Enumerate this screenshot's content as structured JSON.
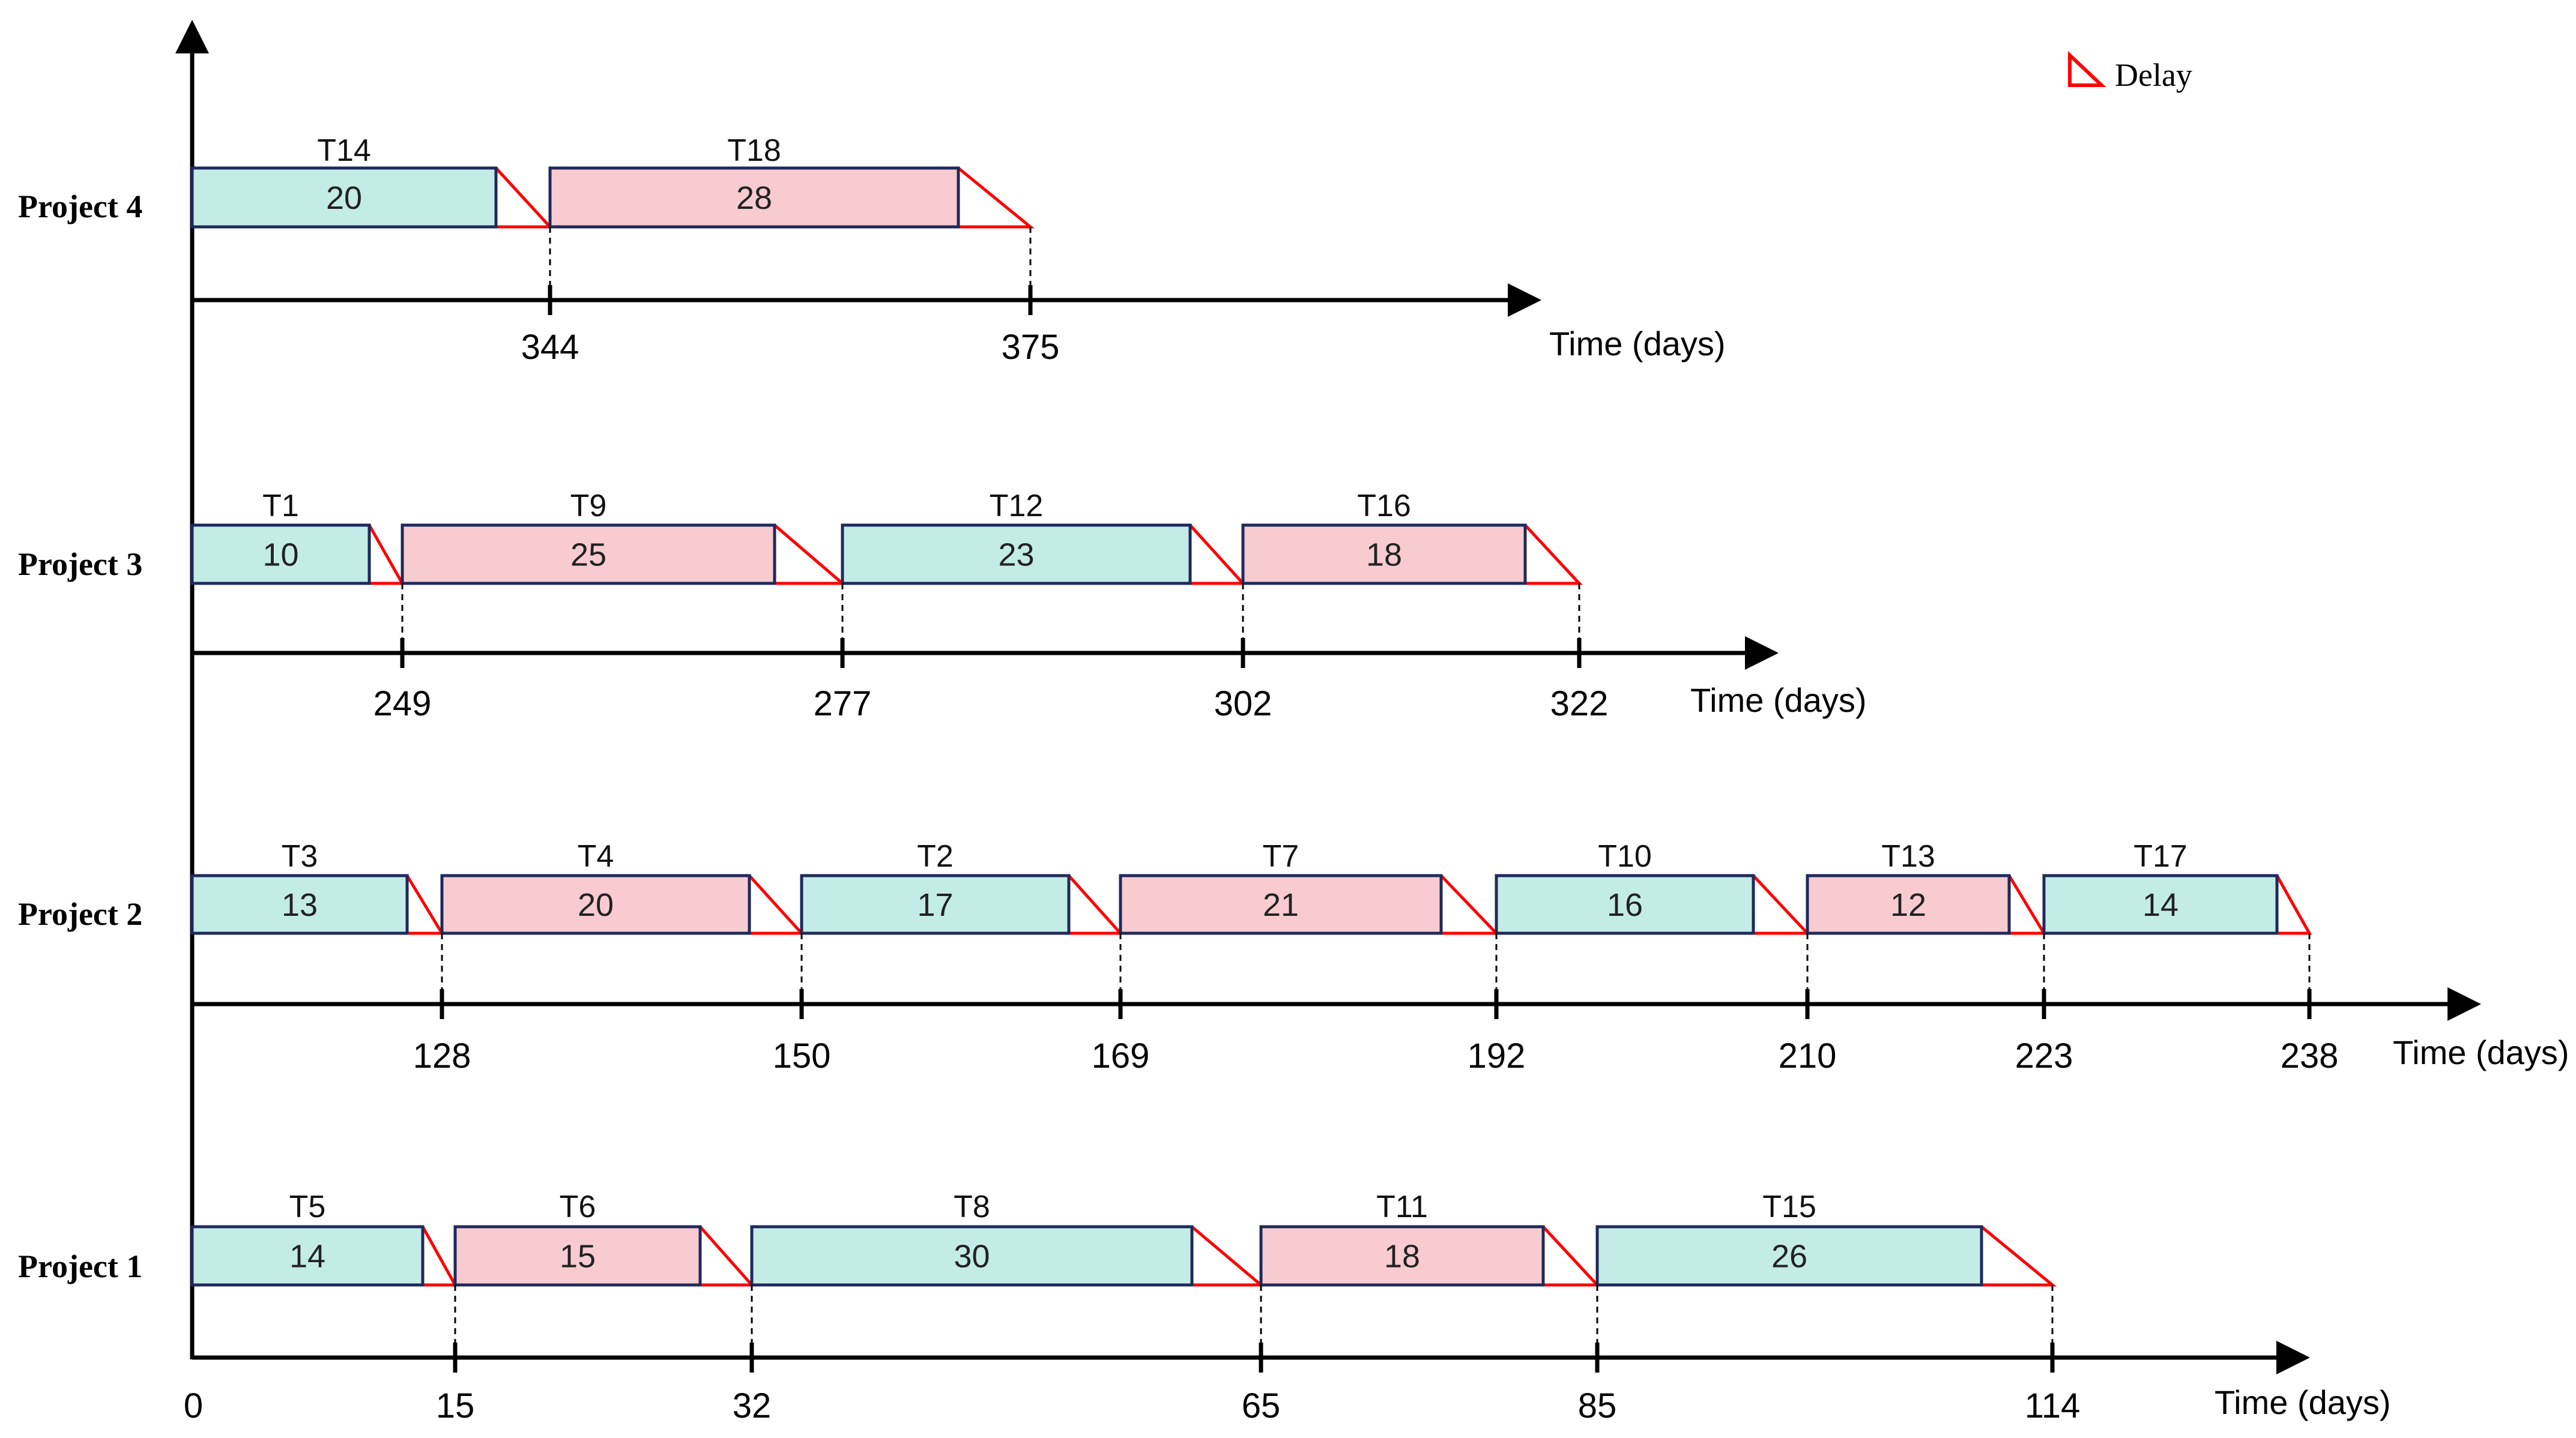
{
  "colors": {
    "teal_fill": "#c3ece7",
    "pink_fill": "#f8cbd0",
    "bar_stroke": "#1f2a5a",
    "delay_stroke": "#ff0000",
    "axis": "#000000"
  },
  "legend": {
    "label": "Delay",
    "icon": "delay-triangle-icon"
  },
  "chart_data": {
    "type": "gantt",
    "axis_title": "Time (days)",
    "origin_label": "0",
    "projects": [
      {
        "name": "Project 4",
        "tasks": [
          {
            "id": "T14",
            "duration": "20",
            "color": "teal"
          },
          {
            "id": "T18",
            "duration": "28",
            "color": "pink"
          }
        ],
        "milestones": [
          "344",
          "375"
        ]
      },
      {
        "name": "Project 3",
        "tasks": [
          {
            "id": "T1",
            "duration": "10",
            "color": "teal"
          },
          {
            "id": "T9",
            "duration": "25",
            "color": "pink"
          },
          {
            "id": "T12",
            "duration": "23",
            "color": "teal"
          },
          {
            "id": "T16",
            "duration": "18",
            "color": "pink"
          }
        ],
        "milestones": [
          "249",
          "277",
          "302",
          "322"
        ]
      },
      {
        "name": "Project 2",
        "tasks": [
          {
            "id": "T3",
            "duration": "13",
            "color": "teal"
          },
          {
            "id": "T4",
            "duration": "20",
            "color": "pink"
          },
          {
            "id": "T2",
            "duration": "17",
            "color": "teal"
          },
          {
            "id": "T7",
            "duration": "21",
            "color": "pink"
          },
          {
            "id": "T10",
            "duration": "16",
            "color": "teal"
          },
          {
            "id": "T13",
            "duration": "12",
            "color": "pink"
          },
          {
            "id": "T17",
            "duration": "14",
            "color": "teal"
          }
        ],
        "milestones": [
          "128",
          "150",
          "169",
          "192",
          "210",
          "223",
          "238"
        ]
      },
      {
        "name": "Project 1",
        "tasks": [
          {
            "id": "T5",
            "duration": "14",
            "color": "teal"
          },
          {
            "id": "T6",
            "duration": "15",
            "color": "pink"
          },
          {
            "id": "T8",
            "duration": "30",
            "color": "teal"
          },
          {
            "id": "T11",
            "duration": "18",
            "color": "pink"
          },
          {
            "id": "T15",
            "duration": "26",
            "color": "teal"
          }
        ],
        "milestones": [
          "15",
          "32",
          "65",
          "85",
          "114"
        ]
      }
    ]
  }
}
